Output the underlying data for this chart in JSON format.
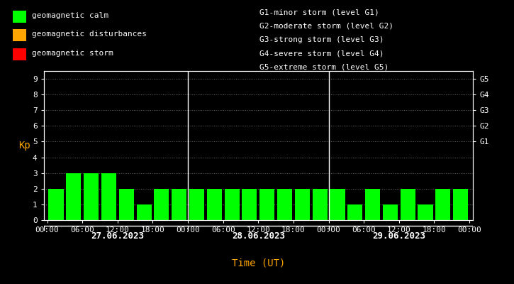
{
  "background_color": "#000000",
  "plot_bg_color": "#000000",
  "bar_color_calm": "#00ff00",
  "bar_color_disturbance": "#ffa500",
  "bar_color_storm": "#ff0000",
  "text_color": "#ffffff",
  "orange_color": "#ffa500",
  "grid_color": "#ffffff",
  "axis_color": "#ffffff",
  "ylabel": "Kp",
  "xlabel": "Time (UT)",
  "ylim": [
    0,
    9.5
  ],
  "yticks": [
    0,
    1,
    2,
    3,
    4,
    5,
    6,
    7,
    8,
    9
  ],
  "days": [
    "27.06.2023",
    "28.06.2023",
    "29.06.2023"
  ],
  "kp_values": [
    [
      2,
      3,
      3,
      3,
      2,
      1,
      2,
      2
    ],
    [
      2,
      2,
      2,
      2,
      2,
      2,
      2,
      2
    ],
    [
      2,
      1,
      2,
      1,
      2,
      1,
      2,
      2
    ]
  ],
  "storm_level_labels": [
    "G1-minor storm (level G1)",
    "G2-moderate storm (level G2)",
    "G3-strong storm (level G3)",
    "G4-severe storm (level G4)",
    "G5-extreme storm (level G5)"
  ],
  "right_axis_labels": [
    "G1",
    "G2",
    "G3",
    "G4",
    "G5"
  ],
  "right_axis_kp": [
    5,
    6,
    7,
    8,
    9
  ],
  "legend_labels": [
    "geomagnetic calm",
    "geomagnetic disturbances",
    "geomagnetic storm"
  ],
  "legend_colors": [
    "#00ff00",
    "#ffa500",
    "#ff0000"
  ],
  "font_family": "monospace",
  "font_size": 8,
  "bar_width": 0.85
}
